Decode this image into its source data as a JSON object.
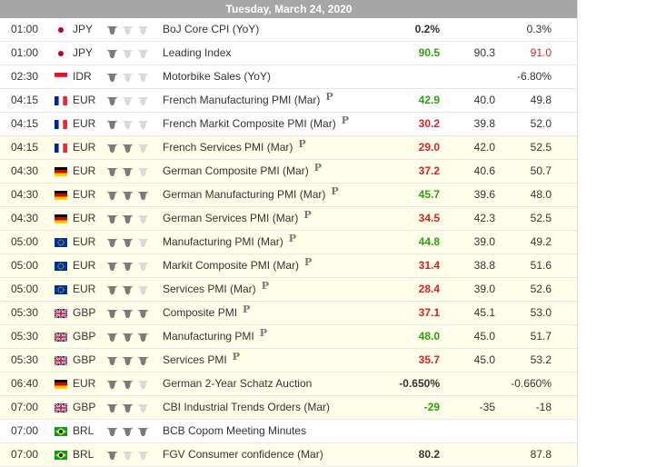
{
  "calendar": {
    "date": "Tuesday, March 24, 2020",
    "colors": {
      "positive": "#2e9e11",
      "negative": "#d3222a",
      "header": "#a6a6a6",
      "highlight": "#fefee9"
    },
    "rows": [
      {
        "time": "01:00",
        "flag": "japan-flag-icon",
        "currency": "JPY",
        "importance": 1,
        "event": "BoJ Core CPI (YoY)",
        "prelim": "",
        "actual": "0.2%",
        "actual_color": "neutral",
        "forecast": "",
        "previous": "0.3%",
        "previous_color": "neutral",
        "highlight": false
      },
      {
        "time": "01:00",
        "flag": "japan-flag-icon",
        "currency": "JPY",
        "importance": 1,
        "event": "Leading Index",
        "prelim": "",
        "actual": "90.5",
        "actual_color": "positive",
        "forecast": "90.3",
        "previous": "91.0",
        "previous_color": "negative",
        "highlight": false
      },
      {
        "time": "02:30",
        "flag": "indonesia-flag-icon",
        "currency": "IDR",
        "importance": 1,
        "event": "Motorbike Sales (YoY)",
        "prelim": "",
        "actual": "",
        "actual_color": "neutral",
        "forecast": "",
        "previous": "-6.80%",
        "previous_color": "neutral",
        "highlight": false
      },
      {
        "time": "04:15",
        "flag": "france-flag-icon",
        "currency": "EUR",
        "importance": 1,
        "event": "French Manufacturing PMI (Mar)",
        "prelim": "P",
        "actual": "42.9",
        "actual_color": "positive",
        "forecast": "40.0",
        "previous": "49.8",
        "previous_color": "neutral",
        "highlight": false
      },
      {
        "time": "04:15",
        "flag": "france-flag-icon",
        "currency": "EUR",
        "importance": 1,
        "event": "French Markit Composite PMI (Mar)",
        "prelim": "P",
        "actual": "30.2",
        "actual_color": "negative",
        "forecast": "39.8",
        "previous": "52.0",
        "previous_color": "neutral",
        "highlight": false
      },
      {
        "time": "04:15",
        "flag": "france-flag-icon",
        "currency": "EUR",
        "importance": 2,
        "event": "French Services PMI (Mar)",
        "prelim": "P",
        "actual": "29.0",
        "actual_color": "negative",
        "forecast": "42.0",
        "previous": "52.5",
        "previous_color": "neutral",
        "highlight": true
      },
      {
        "time": "04:30",
        "flag": "germany-flag-icon",
        "currency": "EUR",
        "importance": 2,
        "event": "German Composite PMI (Mar)",
        "prelim": "P",
        "actual": "37.2",
        "actual_color": "negative",
        "forecast": "40.6",
        "previous": "50.7",
        "previous_color": "neutral",
        "highlight": true
      },
      {
        "time": "04:30",
        "flag": "germany-flag-icon",
        "currency": "EUR",
        "importance": 3,
        "event": "German Manufacturing PMI (Mar)",
        "prelim": "P",
        "actual": "45.7",
        "actual_color": "positive",
        "forecast": "39.6",
        "previous": "48.0",
        "previous_color": "neutral",
        "highlight": true
      },
      {
        "time": "04:30",
        "flag": "germany-flag-icon",
        "currency": "EUR",
        "importance": 2,
        "event": "German Services PMI (Mar)",
        "prelim": "P",
        "actual": "34.5",
        "actual_color": "negative",
        "forecast": "42.3",
        "previous": "52.5",
        "previous_color": "neutral",
        "highlight": true
      },
      {
        "time": "05:00",
        "flag": "eu-flag-icon",
        "currency": "EUR",
        "importance": 2,
        "event": "Manufacturing PMI (Mar)",
        "prelim": "P",
        "actual": "44.8",
        "actual_color": "positive",
        "forecast": "39.0",
        "previous": "49.2",
        "previous_color": "neutral",
        "highlight": true
      },
      {
        "time": "05:00",
        "flag": "eu-flag-icon",
        "currency": "EUR",
        "importance": 2,
        "event": "Markit Composite PMI (Mar)",
        "prelim": "P",
        "actual": "31.4",
        "actual_color": "negative",
        "forecast": "38.8",
        "previous": "51.6",
        "previous_color": "neutral",
        "highlight": true
      },
      {
        "time": "05:00",
        "flag": "eu-flag-icon",
        "currency": "EUR",
        "importance": 2,
        "event": "Services PMI (Mar)",
        "prelim": "P",
        "actual": "28.4",
        "actual_color": "negative",
        "forecast": "39.0",
        "previous": "52.6",
        "previous_color": "neutral",
        "highlight": true
      },
      {
        "time": "05:30",
        "flag": "uk-flag-icon",
        "currency": "GBP",
        "importance": 3,
        "event": "Composite PMI",
        "prelim": "P",
        "actual": "37.1",
        "actual_color": "negative",
        "forecast": "45.1",
        "previous": "53.0",
        "previous_color": "neutral",
        "highlight": true
      },
      {
        "time": "05:30",
        "flag": "uk-flag-icon",
        "currency": "GBP",
        "importance": 3,
        "event": "Manufacturing PMI",
        "prelim": "P",
        "actual": "48.0",
        "actual_color": "positive",
        "forecast": "45.0",
        "previous": "51.7",
        "previous_color": "neutral",
        "highlight": true
      },
      {
        "time": "05:30",
        "flag": "uk-flag-icon",
        "currency": "GBP",
        "importance": 3,
        "event": "Services PMI",
        "prelim": "P",
        "actual": "35.7",
        "actual_color": "negative",
        "forecast": "45.0",
        "previous": "53.2",
        "previous_color": "neutral",
        "highlight": true
      },
      {
        "time": "06:40",
        "flag": "germany-flag-icon",
        "currency": "EUR",
        "importance": 2,
        "event": "German 2-Year Schatz Auction",
        "prelim": "",
        "actual": "-0.650%",
        "actual_color": "neutral",
        "forecast": "",
        "previous": "-0.660%",
        "previous_color": "neutral",
        "highlight": true
      },
      {
        "time": "07:00",
        "flag": "uk-flag-icon",
        "currency": "GBP",
        "importance": 2,
        "event": "CBI Industrial Trends Orders (Mar)",
        "prelim": "",
        "actual": "-29",
        "actual_color": "positive",
        "forecast": "-35",
        "previous": "-18",
        "previous_color": "neutral",
        "highlight": true
      },
      {
        "time": "07:00",
        "flag": "brazil-flag-icon",
        "currency": "BRL",
        "importance": 3,
        "event": "BCB Copom Meeting Minutes",
        "prelim": "",
        "actual": "",
        "actual_color": "neutral",
        "forecast": "",
        "previous": "",
        "previous_color": "neutral",
        "highlight": false
      },
      {
        "time": "07:00",
        "flag": "brazil-flag-icon",
        "currency": "BRL",
        "importance": 1,
        "event": "FGV Consumer confidence (Mar)",
        "prelim": "",
        "actual": "80.2",
        "actual_color": "neutral",
        "forecast": "",
        "previous": "87.8",
        "previous_color": "neutral",
        "highlight": true
      }
    ]
  }
}
